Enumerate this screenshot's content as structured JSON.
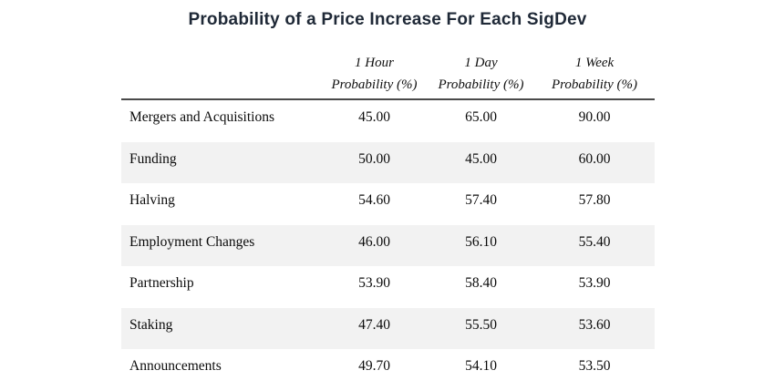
{
  "colors": {
    "title_text": "#1f2937",
    "row_stripe": "#f2f2f2",
    "header_rule": "#4a4a4a",
    "body_text": "#0b0b0b",
    "background": "#ffffff"
  },
  "chart_data": {
    "type": "table",
    "title": "Probability of a Price Increase For Each SigDev",
    "columns": [
      {
        "period": "1 Hour",
        "metric": "Probability (%)"
      },
      {
        "period": "1 Day",
        "metric": "Probability (%)"
      },
      {
        "period": "1 Week",
        "metric": "Probability (%)"
      }
    ],
    "rows": [
      {
        "label": "Mergers and Acquisitions",
        "values": [
          "45.00",
          "65.00",
          "90.00"
        ]
      },
      {
        "label": "Funding",
        "values": [
          "50.00",
          "45.00",
          "60.00"
        ]
      },
      {
        "label": "Halving",
        "values": [
          "54.60",
          "57.40",
          "57.80"
        ]
      },
      {
        "label": "Employment Changes",
        "values": [
          "46.00",
          "56.10",
          "55.40"
        ]
      },
      {
        "label": "Partnership",
        "values": [
          "53.90",
          "58.40",
          "53.90"
        ]
      },
      {
        "label": "Staking",
        "values": [
          "47.40",
          "55.50",
          "53.60"
        ]
      },
      {
        "label": "Announcements",
        "values": [
          "49.70",
          "54.10",
          "53.50"
        ]
      }
    ],
    "layout": {
      "striped_row_labels": [
        "Funding",
        "Employment Changes",
        "Staking"
      ],
      "header_style": "italic",
      "value_format": "two decimals"
    }
  }
}
